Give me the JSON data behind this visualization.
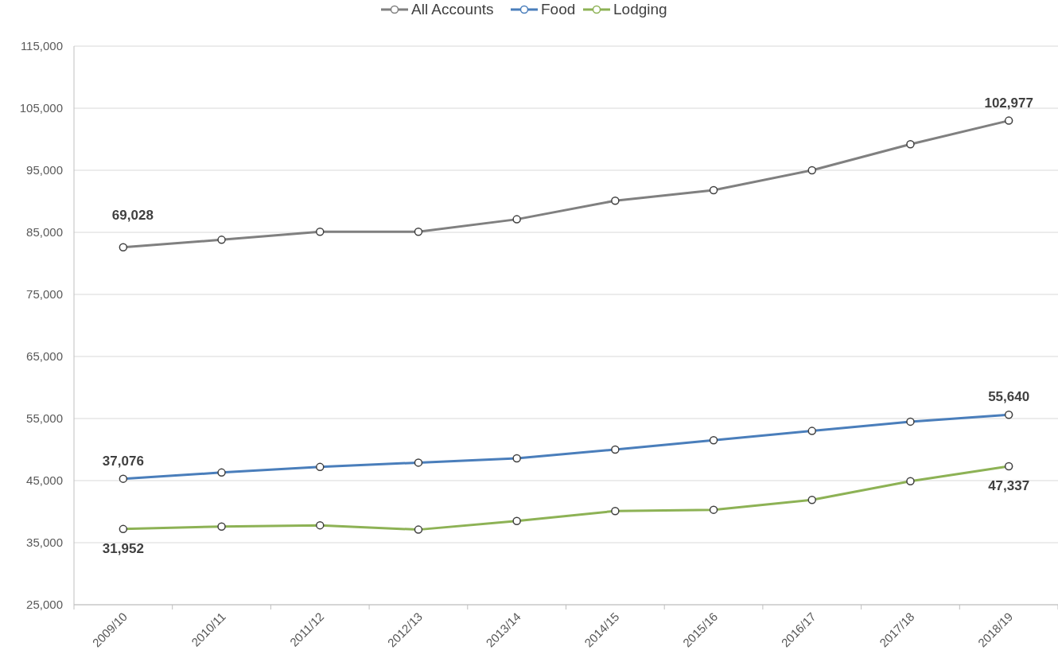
{
  "chart_data": {
    "type": "line",
    "categories": [
      "2009/10",
      "2010/11",
      "2011/12",
      "2012/13",
      "2013/14",
      "2014/15",
      "2015/16",
      "2016/17",
      "2017/18",
      "2018/19"
    ],
    "series": [
      {
        "name": "All Accounts",
        "color": "#808080",
        "values": [
          82600,
          83800,
          85100,
          85100,
          87100,
          90100,
          91800,
          95000,
          99200,
          103000
        ]
      },
      {
        "name": "Food",
        "color": "#4a7ebb",
        "values": [
          45300,
          46300,
          47200,
          47900,
          48600,
          50000,
          51500,
          53000,
          54500,
          55600
        ]
      },
      {
        "name": "Lodging",
        "color": "#8db255",
        "values": [
          37200,
          37600,
          37800,
          37100,
          38500,
          40100,
          40300,
          41900,
          44900,
          47300
        ]
      }
    ],
    "ylim": [
      25000,
      115000
    ],
    "yticks": [
      {
        "value": 25000,
        "label": "25,000"
      },
      {
        "value": 35000,
        "label": "35,000"
      },
      {
        "value": 45000,
        "label": "45,000"
      },
      {
        "value": 55000,
        "label": "55,000"
      },
      {
        "value": 65000,
        "label": "65,000"
      },
      {
        "value": 75000,
        "label": "75,000"
      },
      {
        "value": 85000,
        "label": "85,000"
      },
      {
        "value": 95000,
        "label": "95,000"
      },
      {
        "value": 105000,
        "label": "105,000"
      },
      {
        "value": 115000,
        "label": "115,000"
      }
    ],
    "grid": "y",
    "legend": "top",
    "marker": "circle",
    "line_style": "solid",
    "annotations": [
      "69,028",
      "102,977",
      "37,076",
      "55,640",
      "31,952",
      "47,337"
    ]
  }
}
